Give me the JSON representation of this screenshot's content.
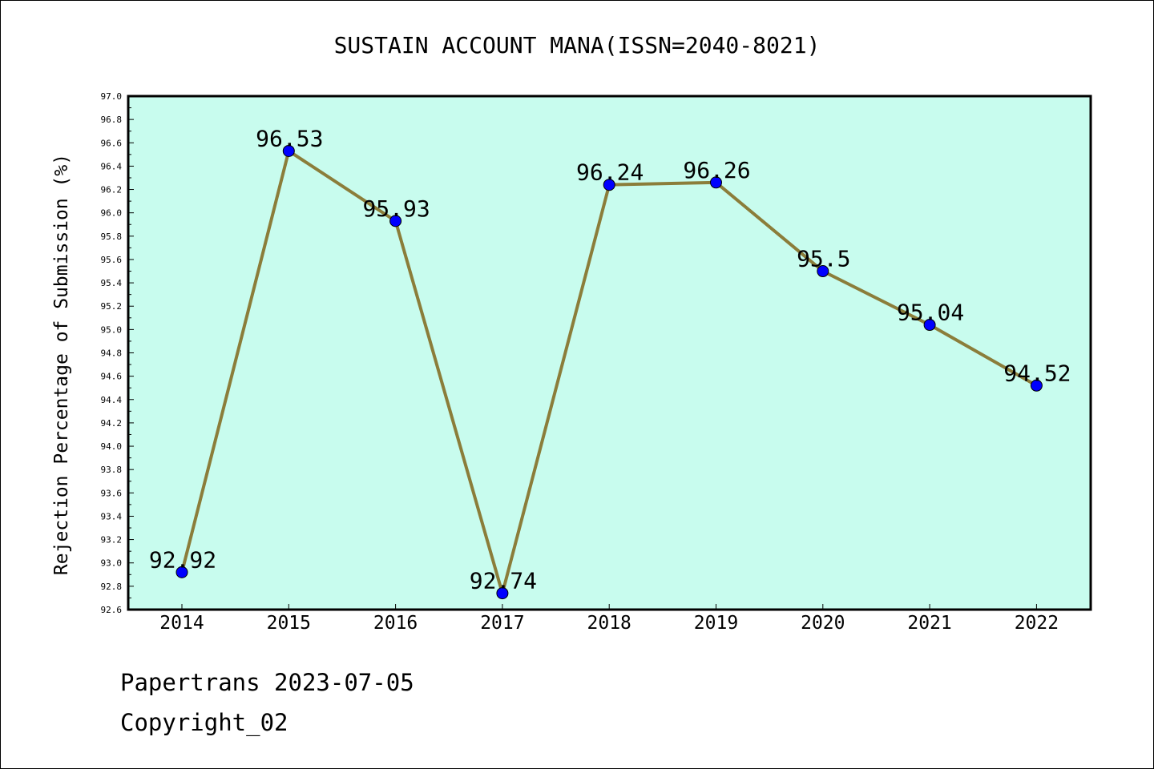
{
  "chart_data": {
    "type": "line",
    "title": "SUSTAIN ACCOUNT MANA(ISSN=2040-8021)",
    "ylabel": "Rejection Percentage of Submission (%)",
    "xlabel": "",
    "categories": [
      "2014",
      "2015",
      "2016",
      "2017",
      "2018",
      "2019",
      "2020",
      "2021",
      "2022"
    ],
    "values": [
      92.92,
      96.53,
      95.93,
      92.74,
      96.24,
      96.26,
      95.5,
      95.04,
      94.52
    ],
    "data_labels": [
      "92.92",
      "96.53",
      "95.93",
      "92.74",
      "96.24",
      "96.26",
      "95.5",
      "95.04",
      "94.52"
    ],
    "ylim": [
      92.6,
      97.0
    ],
    "yticks": [
      "92.6",
      "92.8",
      "93.0",
      "93.2",
      "93.4",
      "93.6",
      "93.8",
      "94.0",
      "94.2",
      "94.4",
      "94.6",
      "94.8",
      "95.0",
      "95.2",
      "95.4",
      "95.6",
      "95.8",
      "96.0",
      "96.2",
      "96.4",
      "96.6",
      "96.8",
      "97.0"
    ],
    "grid": false,
    "colors": {
      "plot_background": "#c8fcee",
      "line": "#8b7d3a",
      "marker": "#0000ff"
    }
  },
  "footer": {
    "line1": "Papertrans 2023-07-05",
    "line2": "Copyright_02"
  }
}
